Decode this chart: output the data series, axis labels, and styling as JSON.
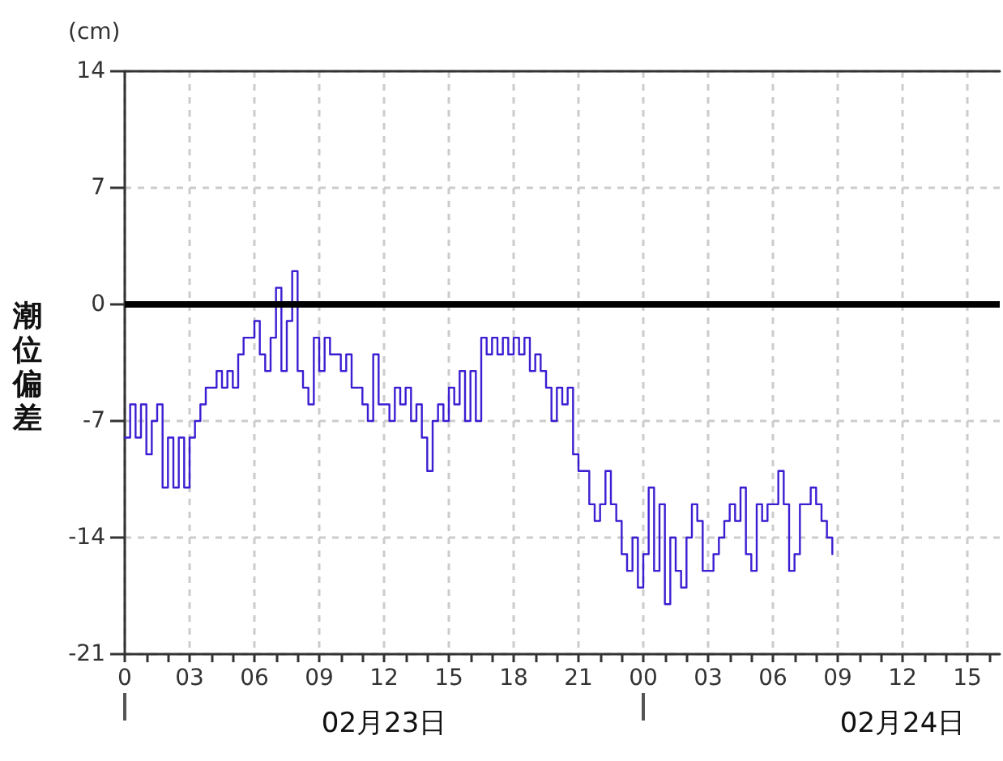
{
  "chart_data": {
    "type": "step",
    "ylabel": "潮位偏差",
    "annotations": [
      "(cm)",
      "02月23日",
      "02月24日"
    ],
    "color": "#3b1ed2",
    "x": [
      0,
      0.25,
      0.5,
      0.75,
      1,
      1.25,
      1.5,
      1.75,
      2,
      2.25,
      2.5,
      2.75,
      3,
      3.25,
      3.5,
      3.75,
      4,
      4.25,
      4.5,
      4.75,
      5,
      5.25,
      5.5,
      5.75,
      6,
      6.25,
      6.5,
      6.75,
      7,
      7.25,
      7.5,
      7.75,
      8,
      8.25,
      8.5,
      8.75,
      9,
      9.25,
      9.5,
      9.75,
      10,
      10.25,
      10.5,
      10.75,
      11,
      11.25,
      11.5,
      11.75,
      12,
      12.25,
      12.5,
      12.75,
      13,
      13.25,
      13.5,
      13.75,
      14,
      14.25,
      14.5,
      14.75,
      15,
      15.25,
      15.5,
      15.75,
      16,
      16.25,
      16.5,
      16.75,
      17,
      17.25,
      17.5,
      17.75,
      18,
      18.25,
      18.5,
      18.75,
      19,
      19.25,
      19.5,
      19.75,
      20,
      20.25,
      20.5,
      20.75,
      21,
      21.25,
      21.5,
      21.75,
      22,
      22.25,
      22.5,
      22.75,
      23,
      23.25,
      23.5,
      23.75,
      24,
      24.25,
      24.5,
      24.75,
      25,
      25.25,
      25.5,
      25.75,
      26,
      26.25,
      26.5,
      26.75,
      27,
      27.25,
      27.5,
      27.75,
      28,
      28.25,
      28.5,
      28.75,
      29,
      29.25,
      29.5,
      29.75,
      30,
      30.25,
      30.5,
      30.75,
      31,
      31.25,
      31.5,
      31.75,
      32,
      32.25,
      32.5,
      32.75
    ],
    "values": [
      -8,
      -6,
      -8,
      -6,
      -9,
      -7,
      -6,
      -11,
      -8,
      -11,
      -8,
      -11,
      -8,
      -7,
      -6,
      -5,
      -5,
      -4,
      -5,
      -4,
      -5,
      -3,
      -2,
      -2,
      -1,
      -3,
      -4,
      -2,
      1,
      -4,
      -1,
      2,
      -4,
      -5,
      -6,
      -2,
      -4,
      -2,
      -3,
      -3,
      -4,
      -3,
      -5,
      -5,
      -6,
      -7,
      -3,
      -6,
      -6,
      -7,
      -5,
      -6,
      -5,
      -7,
      -6,
      -8,
      -10,
      -7,
      -6,
      -7,
      -5,
      -6,
      -4,
      -7,
      -4,
      -7,
      -2,
      -3,
      -2,
      -3,
      -2,
      -3,
      -2,
      -3,
      -2,
      -4,
      -3,
      -4,
      -5,
      -7,
      -5,
      -6,
      -5,
      -9,
      -10,
      -10,
      -12,
      -13,
      -12,
      -10,
      -12,
      -13,
      -15,
      -16,
      -14,
      -17,
      -15,
      -11,
      -16,
      -12,
      -18,
      -14,
      -16,
      -17,
      -14,
      -12,
      -13,
      -16,
      -16,
      -15,
      -14,
      -13,
      -12,
      -13,
      -11,
      -15,
      -16,
      -12,
      -13,
      -12,
      -12,
      -10,
      -12,
      -16,
      -15,
      -12,
      -12,
      -11,
      -12,
      -13,
      -14,
      -15
    ],
    "xlim": [
      0,
      40.5
    ],
    "xticks": [
      0,
      {
        "value": 1,
        "label": null
      },
      {
        "value": 2,
        "label": null
      },
      {
        "value": 3,
        "label": "03"
      },
      {
        "value": 4,
        "label": null
      },
      {
        "value": 5,
        "label": null
      },
      {
        "value": 6,
        "label": "06"
      },
      {
        "value": 7,
        "label": null
      },
      {
        "value": 8,
        "label": null
      },
      {
        "value": 9,
        "label": "09"
      },
      {
        "value": 10,
        "label": null
      },
      {
        "value": 11,
        "label": null
      },
      12,
      {
        "value": 13,
        "label": null
      },
      {
        "value": 14,
        "label": null
      },
      15,
      {
        "value": 16,
        "label": null
      },
      {
        "value": 17,
        "label": null
      },
      18,
      {
        "value": 19,
        "label": null
      },
      {
        "value": 20,
        "label": null
      },
      21,
      {
        "value": 22,
        "label": null
      },
      {
        "value": 23,
        "label": null
      },
      {
        "value": 24,
        "label": "00"
      },
      {
        "value": 25,
        "label": null
      },
      {
        "value": 26,
        "label": null
      },
      {
        "value": 27,
        "label": "03"
      },
      {
        "value": 28,
        "label": null
      },
      {
        "value": 29,
        "label": null
      },
      {
        "value": 30,
        "label": "06"
      },
      {
        "value": 31,
        "label": null
      },
      {
        "value": 32,
        "label": null
      },
      {
        "value": 33,
        "label": "09"
      },
      {
        "value": 34,
        "label": null
      },
      {
        "value": 35,
        "label": null
      },
      {
        "value": 36,
        "label": "12"
      },
      {
        "value": 37,
        "label": null
      },
      {
        "value": 38,
        "label": null
      },
      {
        "value": 39,
        "label": "15"
      },
      {
        "value": 40,
        "label": null
      }
    ],
    "ylim": [
      -21,
      14
    ],
    "yticks": [
      -21,
      -14,
      -7,
      0,
      7,
      14
    ],
    "ref_lines": [
      {
        "axis": "y",
        "value": 0,
        "color": "#000000"
      }
    ],
    "grid": true
  }
}
